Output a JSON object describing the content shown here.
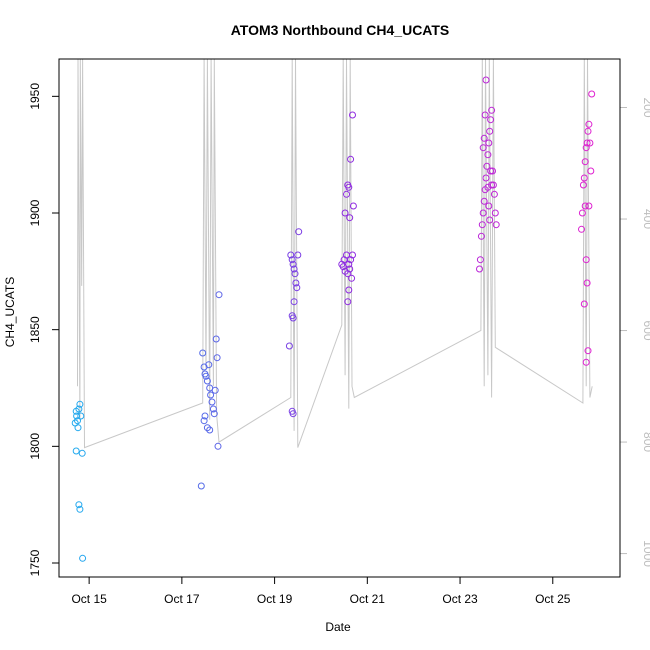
{
  "chart_data": {
    "type": "scatter",
    "title": "ATOM3 Northbound CH4_UCATS",
    "xlabel": "Date",
    "ylabel": "CH4_UCATS",
    "xlim": [
      14.35,
      26.45
    ],
    "ylim": [
      1744,
      1966
    ],
    "y2lim": [
      1042,
      113
    ],
    "x_ticks": [
      {
        "label": "Oct 15",
        "value": 15
      },
      {
        "label": "Oct 17",
        "value": 17
      },
      {
        "label": "Oct 19",
        "value": 19
      },
      {
        "label": "Oct 21",
        "value": 21
      },
      {
        "label": "Oct 23",
        "value": 23
      },
      {
        "label": "Oct 25",
        "value": 25
      }
    ],
    "y_ticks": [
      1750,
      1800,
      1850,
      1900,
      1950
    ],
    "y2_ticks": [
      200,
      400,
      600,
      800,
      1000
    ],
    "colors": {
      "points_start": "#22aaee",
      "points_mid": "#8a2be2",
      "points_end": "#e020d0",
      "pressure_line": "#c8c8c8"
    },
    "pressure_trace": [
      [
        14.75,
        700
      ],
      [
        14.76,
        110
      ],
      [
        14.8,
        760
      ],
      [
        14.81,
        110
      ],
      [
        14.84,
        520
      ],
      [
        14.86,
        110
      ],
      [
        14.9,
        810
      ],
      [
        17.45,
        730
      ],
      [
        17.48,
        110
      ],
      [
        17.52,
        670
      ],
      [
        17.55,
        110
      ],
      [
        17.6,
        760
      ],
      [
        17.63,
        110
      ],
      [
        17.68,
        700
      ],
      [
        17.7,
        110
      ],
      [
        17.75,
        750
      ],
      [
        17.8,
        800
      ],
      [
        19.35,
        720
      ],
      [
        19.38,
        110
      ],
      [
        19.42,
        780
      ],
      [
        19.45,
        110
      ],
      [
        19.5,
        810
      ],
      [
        20.45,
        590
      ],
      [
        20.48,
        110
      ],
      [
        20.52,
        680
      ],
      [
        20.55,
        110
      ],
      [
        20.6,
        740
      ],
      [
        20.63,
        110
      ],
      [
        20.67,
        700
      ],
      [
        20.72,
        720
      ],
      [
        23.45,
        600
      ],
      [
        23.48,
        110
      ],
      [
        23.52,
        700
      ],
      [
        23.55,
        110
      ],
      [
        23.6,
        680
      ],
      [
        23.63,
        110
      ],
      [
        23.68,
        720
      ],
      [
        23.72,
        110
      ],
      [
        23.76,
        630
      ],
      [
        25.65,
        730
      ],
      [
        25.68,
        110
      ],
      [
        25.72,
        700
      ],
      [
        25.75,
        110
      ],
      [
        25.8,
        720
      ],
      [
        25.85,
        700
      ]
    ],
    "series": [
      {
        "name": "CH4_UCATS",
        "points": [
          [
            14.7,
            1810
          ],
          [
            14.72,
            1815
          ],
          [
            14.73,
            1813
          ],
          [
            14.75,
            1811
          ],
          [
            14.76,
            1808
          ],
          [
            14.78,
            1816
          ],
          [
            14.8,
            1818
          ],
          [
            14.82,
            1813
          ],
          [
            14.72,
            1798
          ],
          [
            14.85,
            1797
          ],
          [
            14.78,
            1775
          ],
          [
            14.8,
            1773
          ],
          [
            14.86,
            1752
          ],
          [
            17.42,
            1783
          ],
          [
            17.45,
            1840
          ],
          [
            17.48,
            1834
          ],
          [
            17.5,
            1831
          ],
          [
            17.52,
            1830
          ],
          [
            17.55,
            1828
          ],
          [
            17.58,
            1835
          ],
          [
            17.6,
            1825
          ],
          [
            17.62,
            1822
          ],
          [
            17.65,
            1819
          ],
          [
            17.68,
            1816
          ],
          [
            17.7,
            1814
          ],
          [
            17.72,
            1824
          ],
          [
            17.74,
            1846
          ],
          [
            17.76,
            1838
          ],
          [
            17.78,
            1800
          ],
          [
            17.8,
            1865
          ],
          [
            17.5,
            1813
          ],
          [
            17.55,
            1808
          ],
          [
            17.6,
            1807
          ],
          [
            17.48,
            1811
          ],
          [
            19.32,
            1843
          ],
          [
            19.35,
            1882
          ],
          [
            19.38,
            1880
          ],
          [
            19.4,
            1878
          ],
          [
            19.42,
            1876
          ],
          [
            19.44,
            1874
          ],
          [
            19.46,
            1870
          ],
          [
            19.48,
            1868
          ],
          [
            19.5,
            1882
          ],
          [
            19.52,
            1892
          ],
          [
            19.38,
            1856
          ],
          [
            19.4,
            1855
          ],
          [
            19.42,
            1862
          ],
          [
            19.38,
            1815
          ],
          [
            19.4,
            1814
          ],
          [
            20.45,
            1878
          ],
          [
            20.48,
            1877
          ],
          [
            20.5,
            1880
          ],
          [
            20.52,
            1875
          ],
          [
            20.55,
            1882
          ],
          [
            20.58,
            1874
          ],
          [
            20.6,
            1878
          ],
          [
            20.62,
            1876
          ],
          [
            20.64,
            1880
          ],
          [
            20.66,
            1872
          ],
          [
            20.68,
            1882
          ],
          [
            20.52,
            1900
          ],
          [
            20.55,
            1908
          ],
          [
            20.58,
            1912
          ],
          [
            20.6,
            1911
          ],
          [
            20.62,
            1898
          ],
          [
            20.64,
            1923
          ],
          [
            20.68,
            1942
          ],
          [
            20.7,
            1903
          ],
          [
            20.58,
            1862
          ],
          [
            20.6,
            1867
          ],
          [
            23.42,
            1876
          ],
          [
            23.44,
            1880
          ],
          [
            23.46,
            1890
          ],
          [
            23.48,
            1895
          ],
          [
            23.5,
            1900
          ],
          [
            23.52,
            1905
          ],
          [
            23.54,
            1910
          ],
          [
            23.56,
            1915
          ],
          [
            23.58,
            1920
          ],
          [
            23.6,
            1925
          ],
          [
            23.62,
            1930
          ],
          [
            23.64,
            1935
          ],
          [
            23.66,
            1940
          ],
          [
            23.68,
            1944
          ],
          [
            23.7,
            1918
          ],
          [
            23.72,
            1912
          ],
          [
            23.74,
            1908
          ],
          [
            23.76,
            1900
          ],
          [
            23.78,
            1895
          ],
          [
            23.5,
            1928
          ],
          [
            23.52,
            1932
          ],
          [
            23.54,
            1942
          ],
          [
            23.56,
            1957
          ],
          [
            23.6,
            1911
          ],
          [
            23.62,
            1903
          ],
          [
            23.64,
            1897
          ],
          [
            23.66,
            1918
          ],
          [
            23.68,
            1912
          ],
          [
            25.62,
            1893
          ],
          [
            25.64,
            1900
          ],
          [
            25.66,
            1912
          ],
          [
            25.68,
            1915
          ],
          [
            25.7,
            1922
          ],
          [
            25.72,
            1928
          ],
          [
            25.74,
            1930
          ],
          [
            25.76,
            1935
          ],
          [
            25.78,
            1938
          ],
          [
            25.8,
            1930
          ],
          [
            25.82,
            1918
          ],
          [
            25.84,
            1951
          ],
          [
            25.7,
            1903
          ],
          [
            25.72,
            1880
          ],
          [
            25.74,
            1870
          ],
          [
            25.68,
            1861
          ],
          [
            25.76,
            1841
          ],
          [
            25.72,
            1836
          ],
          [
            25.78,
            1903
          ]
        ]
      }
    ]
  }
}
